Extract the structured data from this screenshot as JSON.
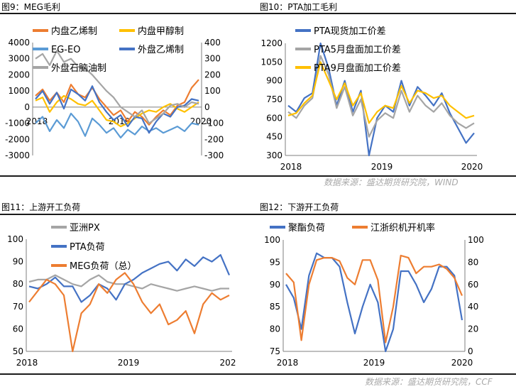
{
  "panels": {
    "p9": {
      "title": "图9：MEG毛利"
    },
    "p10": {
      "title": "图10：PTA加工毛利",
      "source": "数据来源：盛达期货研究院，WIND"
    },
    "p11": {
      "title": "图11：上游开工负荷",
      "source": "数据来源：盛达期货研究院，CCF"
    },
    "p12": {
      "title": "图12：下游开工负荷"
    }
  },
  "colors": {
    "orange": "#ed7d31",
    "gold": "#ffc000",
    "lightblue": "#5b9bd5",
    "darkblue": "#4472c4",
    "gray": "#a5a5a5"
  },
  "chart_data": [
    {
      "id": "c9",
      "type": "line",
      "x_ticks": [
        "2018",
        "2019",
        "2020"
      ],
      "ylim_left": [
        -3000,
        4000
      ],
      "yticks_left": [
        "4000",
        "3000",
        "2000",
        "1000",
        "0",
        "-1000",
        "-2000",
        "-3000"
      ],
      "ylim_right": [
        -300,
        400
      ],
      "yticks_right": [
        "400",
        "300",
        "200",
        "100",
        "0",
        "-100",
        "-200",
        "-300"
      ],
      "series": [
        {
          "name": "内盘乙烯制",
          "color": "#ed7d31",
          "axis": "left",
          "values": [
            700,
            1100,
            400,
            900,
            300,
            1400,
            800,
            600,
            1200,
            500,
            0,
            -500,
            -200,
            -900,
            -300,
            -600,
            -1100,
            -600,
            -200,
            -500,
            100,
            300,
            1200,
            1700
          ]
        },
        {
          "name": "内盘甲醇制",
          "color": "#ffc000",
          "axis": "left",
          "values": [
            400,
            600,
            -300,
            300,
            700,
            500,
            200,
            100,
            400,
            -200,
            -800,
            -900,
            -1200,
            -1000,
            -700,
            -400,
            -200,
            -300,
            0,
            200,
            -100,
            -300,
            0,
            300
          ]
        },
        {
          "name": "EG-EO",
          "color": "#5b9bd5",
          "axis": "left",
          "values": [
            -1000,
            -600,
            -1500,
            -800,
            -1300,
            -400,
            -900,
            -1800,
            -700,
            -1100,
            -1600,
            -1300,
            -1900,
            -1400,
            -1700,
            -1200,
            -1500,
            -1300,
            -1600,
            -1400,
            -1200,
            -1500,
            -1000,
            -1100
          ]
        },
        {
          "name": "外盘乙烯制",
          "color": "#4472c4",
          "axis": "right",
          "values": [
            50,
            100,
            20,
            90,
            -10,
            110,
            80,
            40,
            130,
            30,
            -30,
            -80,
            -50,
            -120,
            -60,
            -70,
            -160,
            -90,
            -40,
            -60,
            0,
            10,
            50,
            40
          ]
        },
        {
          "name": "外盘石脑油制",
          "color": "#a5a5a5",
          "axis": "right",
          "values": [
            300,
            330,
            260,
            350,
            280,
            300,
            250,
            240,
            200,
            150,
            100,
            60,
            0,
            -30,
            -60,
            -20,
            -100,
            -70,
            -40,
            10,
            20,
            0,
            30,
            20
          ]
        }
      ]
    },
    {
      "id": "c10",
      "type": "line",
      "x_ticks": [
        "2018",
        "2019",
        "2020"
      ],
      "ylim": [
        300,
        1200
      ],
      "yticks": [
        "1200",
        "1050",
        "900",
        "750",
        "600",
        "450",
        "300"
      ],
      "series": [
        {
          "name": "PTA现货加工价差",
          "color": "#4472c4",
          "values": [
            700,
            650,
            760,
            800,
            1200,
            1000,
            700,
            900,
            650,
            820,
            300,
            600,
            700,
            650,
            900,
            700,
            850,
            780,
            700,
            800,
            640,
            520,
            400,
            480
          ]
        },
        {
          "name": "PTA5月盘面加工价差",
          "color": "#a5a5a5",
          "values": [
            650,
            600,
            700,
            760,
            1100,
            950,
            680,
            850,
            620,
            750,
            450,
            580,
            640,
            600,
            820,
            650,
            780,
            700,
            650,
            720,
            620,
            560,
            520,
            560
          ]
        },
        {
          "name": "PTA9月盘面加工价差",
          "color": "#ffc000",
          "values": [
            620,
            640,
            720,
            780,
            1050,
            900,
            750,
            880,
            700,
            800,
            560,
            650,
            700,
            680,
            860,
            720,
            820,
            800,
            760,
            780,
            700,
            650,
            600,
            620
          ]
        }
      ]
    },
    {
      "id": "c11",
      "type": "line",
      "x_ticks": [
        "2018",
        "2019",
        "202"
      ],
      "ylim": [
        50,
        100
      ],
      "yticks": [
        "100",
        "90",
        "80",
        "70",
        "60",
        "50"
      ],
      "series": [
        {
          "name": "亚洲PX",
          "color": "#a5a5a5",
          "values": [
            81,
            82,
            82,
            84,
            82,
            80,
            79,
            82,
            84,
            81,
            80,
            80,
            79,
            78,
            80,
            79,
            78,
            77,
            78,
            79,
            78,
            77,
            78,
            78
          ]
        },
        {
          "name": "PTA负荷",
          "color": "#4472c4",
          "values": [
            79,
            78,
            80,
            83,
            79,
            79,
            72,
            75,
            80,
            78,
            73,
            80,
            82,
            85,
            87,
            89,
            90,
            86,
            91,
            88,
            92,
            90,
            93,
            84
          ]
        },
        {
          "name": "MEG负荷（总）",
          "color": "#ed7d31",
          "values": [
            72,
            77,
            82,
            80,
            75,
            50,
            67,
            71,
            80,
            76,
            82,
            85,
            80,
            72,
            67,
            71,
            62,
            64,
            68,
            58,
            71,
            76,
            73,
            75
          ]
        }
      ]
    },
    {
      "id": "c12",
      "type": "line",
      "x_ticks": [
        "2018",
        "2019",
        "2020"
      ],
      "ylim_left": [
        75,
        100
      ],
      "yticks_left": [
        "100",
        "95",
        "90",
        "85",
        "80",
        "75"
      ],
      "ylim_right": [
        0,
        100
      ],
      "yticks_right": [
        "100",
        "80",
        "60",
        "40",
        "20",
        "0"
      ],
      "series": [
        {
          "name": "聚酯负荷",
          "color": "#4472c4",
          "axis": "left",
          "values": [
            90,
            87,
            80,
            92,
            97,
            96,
            96,
            94,
            86,
            79,
            85,
            90,
            86,
            75,
            80,
            93,
            93,
            90,
            86,
            89,
            94,
            94,
            92,
            82
          ]
        },
        {
          "name": "江浙织机开机率",
          "color": "#ed7d31",
          "axis": "right",
          "values": [
            70,
            62,
            10,
            60,
            82,
            84,
            84,
            81,
            66,
            60,
            82,
            82,
            64,
            8,
            40,
            86,
            84,
            70,
            76,
            76,
            78,
            74,
            66,
            50
          ]
        }
      ]
    }
  ]
}
